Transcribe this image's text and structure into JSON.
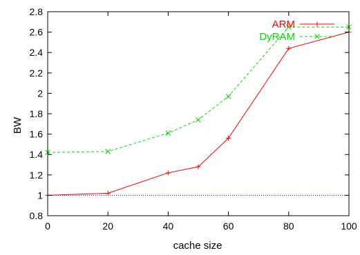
{
  "chart_data": {
    "type": "line",
    "xlabel": "cache size",
    "ylabel": "BW",
    "xlim": [
      0,
      100
    ],
    "ylim": [
      0.8,
      2.8
    ],
    "xticks": [
      0,
      20,
      40,
      60,
      80,
      100
    ],
    "yticks": [
      0.8,
      1,
      1.2,
      1.4,
      1.6,
      1.8,
      2,
      2.2,
      2.4,
      2.6,
      2.8
    ],
    "xtick_labels": [
      "0",
      "20",
      "40",
      "60",
      "80",
      "100"
    ],
    "ytick_labels": [
      "0.8",
      "1",
      "1.2",
      "1.4",
      "1.6",
      "1.8",
      "2",
      "2.2",
      "2.4",
      "2.6",
      "2.8"
    ],
    "legend_position": "top-right",
    "grid": false,
    "series": [
      {
        "name": "ARM",
        "color": "#ff0000",
        "dash": "solid",
        "marker": "plus",
        "x": [
          0,
          20,
          40,
          50,
          60,
          80,
          100
        ],
        "y": [
          1.0,
          1.02,
          1.22,
          1.28,
          1.56,
          2.44,
          2.6
        ]
      },
      {
        "name": "DyRAM",
        "color": "#00dd00",
        "dash": "dashed",
        "marker": "cross",
        "x": [
          0,
          20,
          40,
          50,
          60,
          80,
          100
        ],
        "y": [
          1.42,
          1.43,
          1.61,
          1.74,
          1.97,
          2.65,
          2.65
        ]
      }
    ],
    "reference_line": {
      "y": 1.0,
      "color": "#0000ff",
      "dash": "dotted"
    }
  }
}
